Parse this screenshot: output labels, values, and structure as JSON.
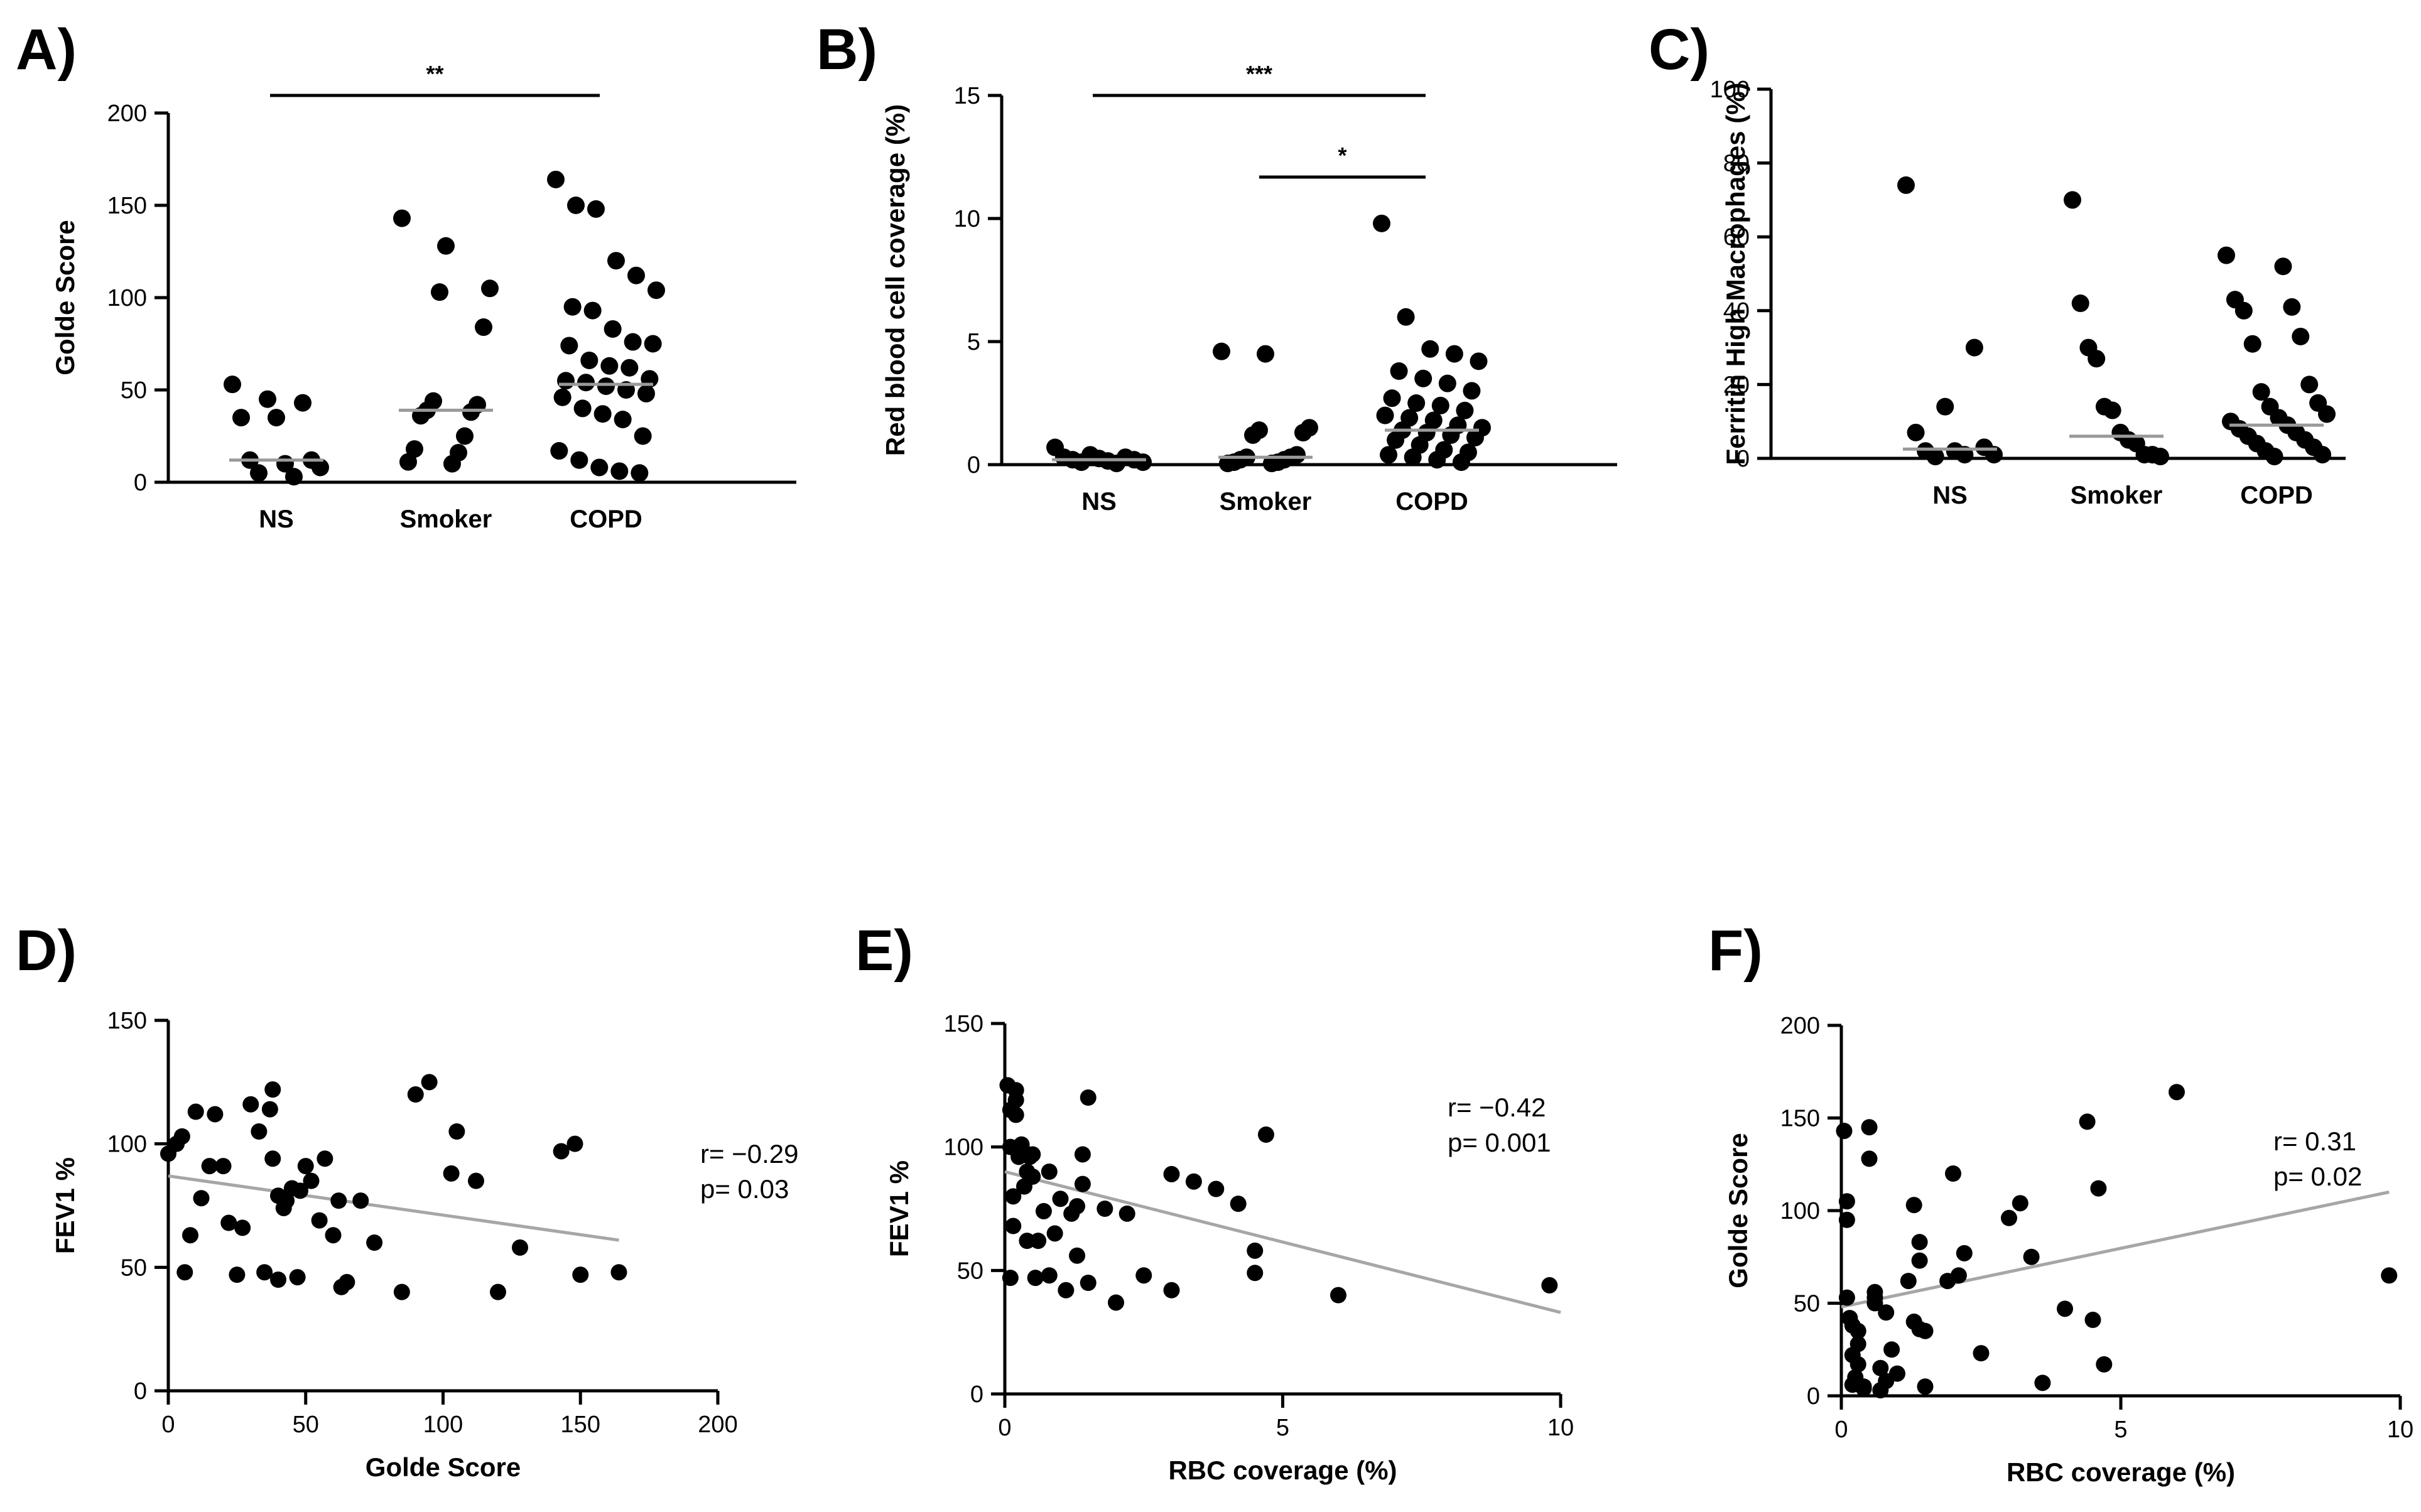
{
  "chart_data": [
    {
      "id": "A",
      "type": "scatter",
      "subtype": "dot-strip",
      "panel_label": "A)",
      "ylabel": "Golde Score",
      "xlabel": "",
      "ylim": [
        0,
        200
      ],
      "yticks": [
        0,
        50,
        100,
        150,
        200
      ],
      "categories": [
        "NS",
        "Smoker",
        "COPD"
      ],
      "medians": [
        12,
        39,
        53
      ],
      "series": [
        {
          "name": "NS",
          "values": [
            53,
            45,
            43,
            35,
            35,
            12,
            12,
            10,
            8,
            5,
            3
          ]
        },
        {
          "name": "Smoker",
          "values": [
            143,
            128,
            105,
            103,
            84,
            44,
            42,
            39,
            38,
            36,
            25,
            18,
            16,
            11,
            10
          ]
        },
        {
          "name": "COPD",
          "values": [
            164,
            150,
            148,
            120,
            112,
            104,
            95,
            93,
            83,
            76,
            75,
            74,
            66,
            63,
            62,
            56,
            55,
            54,
            52,
            50,
            48,
            46,
            40,
            37,
            34,
            25,
            17,
            12,
            8,
            6,
            5
          ]
        }
      ],
      "comparisons": [
        {
          "from": "NS",
          "to": "COPD",
          "label": "**"
        }
      ]
    },
    {
      "id": "B",
      "type": "scatter",
      "subtype": "dot-strip",
      "panel_label": "B)",
      "ylabel": "Red blood cell coverage (%)",
      "xlabel": "",
      "ylim": [
        0,
        15
      ],
      "yticks": [
        0,
        5,
        10,
        15
      ],
      "categories": [
        "NS",
        "Smoker",
        "COPD"
      ],
      "medians": [
        0.2,
        0.3,
        1.4
      ],
      "series": [
        {
          "name": "NS",
          "values": [
            0.7,
            0.4,
            0.3,
            0.3,
            0.25,
            0.2,
            0.2,
            0.15,
            0.1,
            0.1,
            0.05
          ]
        },
        {
          "name": "Smoker",
          "values": [
            4.6,
            4.5,
            1.5,
            1.4,
            1.3,
            1.2,
            0.4,
            0.3,
            0.3,
            0.2,
            0.2,
            0.1,
            0.1,
            0.05,
            0.05
          ]
        },
        {
          "name": "COPD",
          "values": [
            9.8,
            6.0,
            4.7,
            4.5,
            4.2,
            3.8,
            3.5,
            3.3,
            3.0,
            2.7,
            2.5,
            2.4,
            2.2,
            2.0,
            1.9,
            1.8,
            1.6,
            1.5,
            1.4,
            1.3,
            1.2,
            1.1,
            1.0,
            0.8,
            0.6,
            0.5,
            0.4,
            0.3,
            0.2,
            0.1
          ]
        }
      ],
      "comparisons": [
        {
          "from": "NS",
          "to": "COPD",
          "label": "***"
        },
        {
          "from": "Smoker",
          "to": "COPD",
          "label": "*"
        }
      ]
    },
    {
      "id": "C",
      "type": "scatter",
      "subtype": "dot-strip",
      "panel_label": "C)",
      "ylabel": "Ferritin High Macrophages (%)",
      "xlabel": "",
      "ylim": [
        0,
        100
      ],
      "yticks": [
        0,
        20,
        40,
        60,
        80,
        100
      ],
      "categories": [
        "NS",
        "Smoker",
        "COPD"
      ],
      "medians": [
        2.5,
        6,
        9
      ],
      "series": [
        {
          "name": "NS",
          "values": [
            74,
            30,
            14,
            7,
            3,
            2,
            2,
            1,
            1,
            0.5
          ]
        },
        {
          "name": "Smoker",
          "values": [
            70,
            42,
            30,
            27,
            14,
            13,
            7,
            5,
            4,
            1,
            1,
            0.5
          ]
        },
        {
          "name": "COPD",
          "values": [
            55,
            52,
            43,
            41,
            40,
            33,
            31,
            20,
            18,
            15,
            14,
            12,
            11,
            10,
            9,
            8,
            7,
            6,
            5,
            4,
            3,
            2,
            1,
            0.5
          ]
        }
      ],
      "comparisons": []
    },
    {
      "id": "D",
      "type": "scatter",
      "panel_label": "D)",
      "xlabel": "Golde Score",
      "ylabel": "FEV1 %",
      "xlim": [
        0,
        200
      ],
      "xticks": [
        0,
        50,
        100,
        150,
        200
      ],
      "ylim": [
        0,
        150
      ],
      "yticks": [
        0,
        50,
        100,
        150
      ],
      "stats": {
        "r": "r= −0.29",
        "p": "p= 0.03"
      },
      "fit": {
        "x": [
          0,
          164
        ],
        "y": [
          87,
          61
        ]
      },
      "x": [
        0,
        3,
        5,
        6,
        8,
        10,
        12,
        15,
        17,
        20,
        22,
        25,
        27,
        30,
        33,
        35,
        37,
        38,
        38,
        40,
        40,
        42,
        43,
        45,
        47,
        48,
        50,
        52,
        55,
        57,
        60,
        62,
        63,
        65,
        70,
        75,
        85,
        90,
        95,
        103,
        105,
        112,
        128,
        143,
        148,
        150,
        164,
        120
      ],
      "y": [
        96,
        100,
        103,
        48,
        63,
        113,
        78,
        91,
        112,
        91,
        68,
        47,
        66,
        116,
        105,
        48,
        114,
        122,
        94,
        45,
        79,
        74,
        77,
        82,
        46,
        81,
        91,
        85,
        69,
        94,
        63,
        77,
        42,
        44,
        77,
        60,
        40,
        120,
        125,
        88,
        105,
        85,
        58,
        97,
        100,
        47,
        48,
        40
      ]
    },
    {
      "id": "E",
      "type": "scatter",
      "panel_label": "E)",
      "xlabel": "RBC coverage (%)",
      "ylabel": "FEV1 %",
      "xlim": [
        0,
        10
      ],
      "xticks": [
        0,
        5,
        10
      ],
      "ylim": [
        0,
        150
      ],
      "yticks": [
        0,
        50,
        100,
        150
      ],
      "stats": {
        "r": "r= −0.42",
        "p": "p= 0.001"
      },
      "fit": {
        "x": [
          0,
          10
        ],
        "y": [
          90,
          33
        ]
      },
      "x": [
        0.05,
        0.1,
        0.1,
        0.15,
        0.2,
        0.2,
        0.25,
        0.3,
        0.3,
        0.35,
        0.4,
        0.4,
        0.45,
        0.5,
        0.5,
        0.55,
        0.6,
        0.7,
        0.8,
        0.8,
        0.9,
        1.0,
        1.1,
        1.2,
        1.3,
        1.3,
        1.4,
        1.5,
        1.5,
        1.8,
        2.0,
        2.2,
        2.5,
        3.0,
        3.0,
        3.4,
        3.8,
        4.2,
        4.5,
        4.7,
        4.5,
        6.0,
        9.8,
        0.1,
        0.2,
        0.15,
        1.4
      ],
      "y": [
        125,
        115,
        100,
        80,
        123,
        113,
        96,
        100,
        101,
        84,
        90,
        62,
        96,
        97,
        88,
        47,
        62,
        74,
        48,
        90,
        65,
        79,
        42,
        73,
        76,
        56,
        97,
        45,
        120,
        75,
        37,
        73,
        48,
        89,
        42,
        86,
        83,
        77,
        49,
        105,
        58,
        40,
        44,
        47,
        119,
        68,
        85
      ]
    },
    {
      "id": "F",
      "type": "scatter",
      "panel_label": "F)",
      "xlabel": "RBC coverage (%)",
      "ylabel": "Golde Score",
      "xlim": [
        0,
        10
      ],
      "xticks": [
        0,
        5,
        10
      ],
      "ylim": [
        0,
        200
      ],
      "yticks": [
        0,
        50,
        100,
        150,
        200
      ],
      "stats": {
        "r": "r= 0.31",
        "p": "p= 0.02"
      },
      "fit": {
        "x": [
          0,
          9.8
        ],
        "y": [
          48,
          110
        ]
      },
      "x": [
        0.05,
        0.1,
        0.1,
        0.15,
        0.2,
        0.2,
        0.25,
        0.3,
        0.3,
        0.3,
        0.4,
        0.4,
        0.5,
        0.5,
        0.6,
        0.6,
        0.7,
        0.7,
        0.8,
        0.8,
        0.9,
        1.0,
        1.2,
        1.3,
        1.3,
        1.4,
        1.4,
        1.4,
        1.5,
        1.5,
        1.9,
        2.0,
        2.1,
        2.2,
        2.5,
        3.0,
        3.2,
        3.4,
        3.6,
        4.0,
        4.4,
        4.5,
        4.6,
        4.7,
        6.0,
        9.8,
        0.6,
        0.2,
        0.1
      ],
      "y": [
        143,
        105,
        95,
        42,
        38,
        22,
        10,
        35,
        28,
        17,
        5,
        4,
        145,
        128,
        50,
        56,
        15,
        3,
        45,
        8,
        25,
        12,
        62,
        103,
        40,
        83,
        73,
        36,
        5,
        35,
        62,
        120,
        65,
        77,
        23,
        96,
        104,
        75,
        7,
        47,
        148,
        41,
        112,
        17,
        164,
        65,
        53,
        6,
        53
      ]
    }
  ]
}
